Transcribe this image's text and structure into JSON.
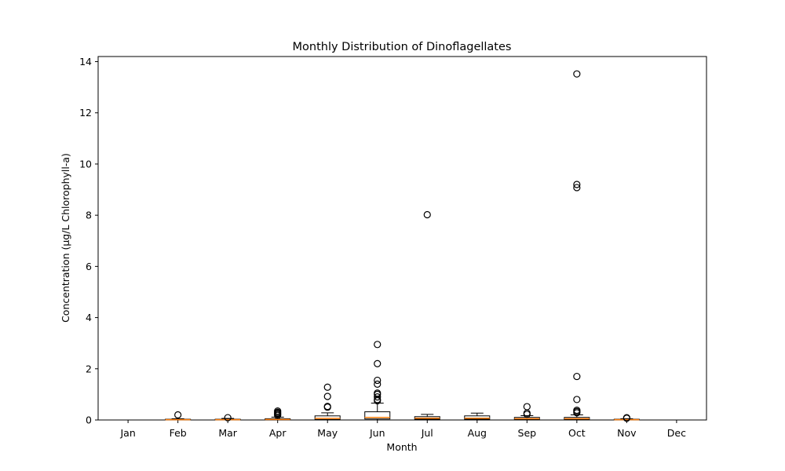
{
  "chart_data": {
    "type": "box",
    "title": "Monthly Distribution of Dinoflagellates",
    "xlabel": "Month",
    "ylabel": "Concentration (µg/L Chlorophyll-a)",
    "ylim": [
      0,
      14.2
    ],
    "yticks": [
      "0",
      "2",
      "4",
      "6",
      "8",
      "10",
      "12",
      "14"
    ],
    "ytick_values": [
      0,
      2,
      4,
      6,
      8,
      10,
      12,
      14
    ],
    "categories": [
      "Jan",
      "Feb",
      "Mar",
      "Apr",
      "May",
      "Jun",
      "Jul",
      "Aug",
      "Sep",
      "Oct",
      "Nov",
      "Dec"
    ],
    "grid": false,
    "colors": {
      "median": "#ff7f0e",
      "box": "#000000",
      "outlier": "#000000"
    },
    "boxes": [
      null,
      {
        "q1": 0.0,
        "median": 0.01,
        "q3": 0.03,
        "whislo": 0.0,
        "whishi": 0.05,
        "fliers": [
          0.2
        ]
      },
      {
        "q1": 0.0,
        "median": 0.01,
        "q3": 0.03,
        "whislo": 0.0,
        "whishi": 0.06,
        "fliers": [
          0.09
        ]
      },
      {
        "q1": 0.0,
        "median": 0.02,
        "q3": 0.05,
        "whislo": 0.0,
        "whishi": 0.11,
        "fliers": [
          0.18,
          0.22,
          0.26,
          0.3,
          0.35
        ]
      },
      {
        "q1": 0.02,
        "median": 0.06,
        "q3": 0.16,
        "whislo": 0.0,
        "whishi": 0.28,
        "fliers": [
          0.5,
          0.53,
          0.92,
          1.28
        ]
      },
      {
        "q1": 0.04,
        "median": 0.1,
        "q3": 0.32,
        "whislo": 0.0,
        "whishi": 0.66,
        "fliers": [
          0.75,
          0.8,
          0.9,
          1.0,
          1.05,
          1.4,
          1.55,
          2.2,
          2.95
        ]
      },
      {
        "q1": 0.03,
        "median": 0.07,
        "q3": 0.13,
        "whislo": 0.0,
        "whishi": 0.22,
        "fliers": [
          8.02
        ]
      },
      {
        "q1": 0.03,
        "median": 0.07,
        "q3": 0.16,
        "whislo": 0.0,
        "whishi": 0.27,
        "fliers": []
      },
      {
        "q1": 0.02,
        "median": 0.05,
        "q3": 0.1,
        "whislo": 0.0,
        "whishi": 0.17,
        "fliers": [
          0.22,
          0.27,
          0.52
        ]
      },
      {
        "q1": 0.02,
        "median": 0.05,
        "q3": 0.1,
        "whislo": 0.0,
        "whishi": 0.2,
        "fliers": [
          0.28,
          0.33,
          0.38,
          0.8,
          1.7,
          9.08,
          9.2,
          13.52
        ]
      },
      {
        "q1": 0.0,
        "median": 0.01,
        "q3": 0.03,
        "whislo": 0.0,
        "whishi": 0.05,
        "fliers": [
          0.07,
          0.09
        ]
      },
      null
    ]
  }
}
